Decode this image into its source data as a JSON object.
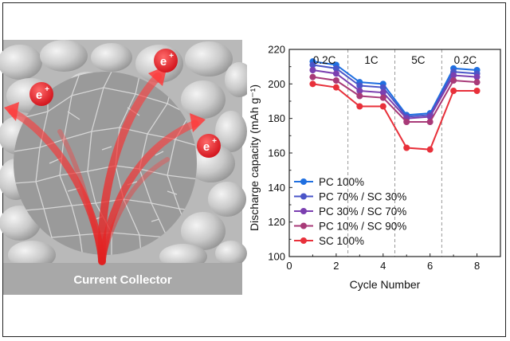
{
  "illustration": {
    "collector_label": "Current Collector",
    "electron_label": "e",
    "electron_charge": "+"
  },
  "chart_data": {
    "type": "line",
    "title": "",
    "xlabel": "Cycle Number",
    "ylabel": "Discharge capacity (mAh g⁻¹)",
    "xlim": [
      0,
      9
    ],
    "ylim": [
      100,
      220
    ],
    "x_ticks": [
      0,
      2,
      4,
      6,
      8
    ],
    "y_ticks": [
      100,
      120,
      140,
      160,
      180,
      200,
      220
    ],
    "grid": false,
    "legend_position": "bottom-left",
    "rate_labels": [
      {
        "label": "0.2C",
        "x": 1.5
      },
      {
        "label": "1C",
        "x": 3.5
      },
      {
        "label": "5C",
        "x": 5.5
      },
      {
        "label": "0.2C",
        "x": 7.5
      }
    ],
    "rate_dividers": [
      2.5,
      4.5,
      6.5
    ],
    "x": [
      1,
      2,
      3,
      4,
      5,
      6,
      7,
      8
    ],
    "series": [
      {
        "name": "PC 100%",
        "color": "#1f6fe0",
        "values": [
          213,
          211,
          201,
          200,
          182,
          183,
          209,
          208
        ]
      },
      {
        "name": "PC 70% / SC 30%",
        "color": "#4a55c8",
        "values": [
          211,
          209,
          199,
          198,
          181,
          182,
          207,
          206
        ]
      },
      {
        "name": "PC 30% / SC 70%",
        "color": "#7b3fb0",
        "values": [
          208,
          206,
          196,
          195,
          180,
          181,
          205,
          204
        ]
      },
      {
        "name": "PC 10% / SC 90%",
        "color": "#a83a78",
        "values": [
          204,
          202,
          193,
          192,
          178,
          178,
          202,
          201
        ]
      },
      {
        "name": "SC 100%",
        "color": "#e8303a",
        "values": [
          200,
          198,
          187,
          187,
          163,
          162,
          196,
          196
        ]
      }
    ]
  }
}
